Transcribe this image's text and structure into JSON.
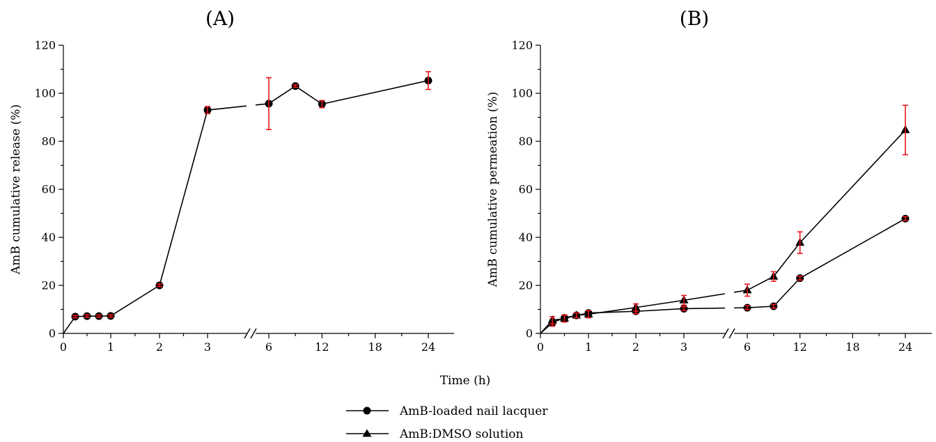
{
  "xlabel": "Time (h)",
  "legend": [
    {
      "label": "AmB-loaded nail lacquer",
      "marker": "circle"
    },
    {
      "label": "AmB:DMSO solution",
      "marker": "triangle"
    }
  ],
  "colors": {
    "axis": "#000000",
    "error_bar": "#e8161b",
    "marker": "#000000"
  },
  "chart_data": [
    {
      "type": "line",
      "panel_label": "(A)",
      "ylabel": "AmB cumulative release (%)",
      "ylim": [
        0,
        120
      ],
      "yticks": [
        0,
        20,
        40,
        60,
        80,
        100,
        120
      ],
      "xticks": [
        "0",
        "1",
        "2",
        "3",
        "6",
        "12",
        "18",
        "24"
      ],
      "x_axis_break": "between 3 and 6",
      "grid": false,
      "series": [
        {
          "marker": "circle",
          "points": [
            {
              "x": 0,
              "y": 0
            },
            {
              "x": 0.25,
              "y": 7,
              "err": 0.5
            },
            {
              "x": 0.5,
              "y": 7.2,
              "err": 0.5
            },
            {
              "x": 0.75,
              "y": 7.2,
              "err": 0.5
            },
            {
              "x": 1,
              "y": 7.3,
              "err": 0.5
            },
            {
              "x": 2,
              "y": 20,
              "err": 0.5
            },
            {
              "x": 3,
              "y": 93,
              "err": 1.5
            },
            {
              "x": 6,
              "y": 95.7,
              "err": 10.8
            },
            {
              "x": 9,
              "y": 103,
              "err": 0.5
            },
            {
              "x": 12,
              "y": 95.5,
              "err": 1.5
            },
            {
              "x": 24,
              "y": 105.3,
              "err": 3.7
            }
          ]
        }
      ]
    },
    {
      "type": "line",
      "panel_label": "(B)",
      "ylabel": "AmB cumulative permeation (%)",
      "ylim": [
        0,
        120
      ],
      "yticks": [
        0,
        20,
        40,
        60,
        80,
        100,
        120
      ],
      "xticks": [
        "0",
        "1",
        "2",
        "3",
        "6",
        "12",
        "18",
        "24"
      ],
      "x_axis_break": "between 3 and 6",
      "grid": false,
      "series": [
        {
          "name": "AmB-loaded nail lacquer",
          "marker": "circle",
          "points": [
            {
              "x": 0,
              "y": 0
            },
            {
              "x": 0.25,
              "y": 4.5,
              "err": 1.5
            },
            {
              "x": 0.5,
              "y": 6.5,
              "err": 1.0
            },
            {
              "x": 0.75,
              "y": 7.5,
              "err": 1.0
            },
            {
              "x": 1,
              "y": 8.5,
              "err": 1.0
            },
            {
              "x": 2,
              "y": 9.2,
              "err": 1.0
            },
            {
              "x": 3,
              "y": 10.3,
              "err": 0.8
            },
            {
              "x": 6,
              "y": 10.7,
              "err": 0.8
            },
            {
              "x": 9,
              "y": 11.3,
              "err": 0.8
            },
            {
              "x": 12,
              "y": 23,
              "err": 0.8
            },
            {
              "x": 24,
              "y": 47.8,
              "err": 0.8
            }
          ]
        },
        {
          "name": "AmB:DMSO solution",
          "marker": "triangle",
          "points": [
            {
              "x": 0,
              "y": 0
            },
            {
              "x": 0.25,
              "y": 5.5,
              "err": 1.5
            },
            {
              "x": 0.5,
              "y": 6.2,
              "err": 1.5
            },
            {
              "x": 0.75,
              "y": 7.5,
              "err": 1.0
            },
            {
              "x": 1,
              "y": 8.0,
              "err": 1.5
            },
            {
              "x": 2,
              "y": 10.8,
              "err": 1.5
            },
            {
              "x": 3,
              "y": 13.8,
              "err": 2.0
            },
            {
              "x": 6,
              "y": 18,
              "err": 2.5
            },
            {
              "x": 9,
              "y": 23.7,
              "err": 2.0
            },
            {
              "x": 12,
              "y": 37.8,
              "err": 4.5
            },
            {
              "x": 24,
              "y": 84.7,
              "err": 10.3
            }
          ]
        }
      ]
    }
  ]
}
